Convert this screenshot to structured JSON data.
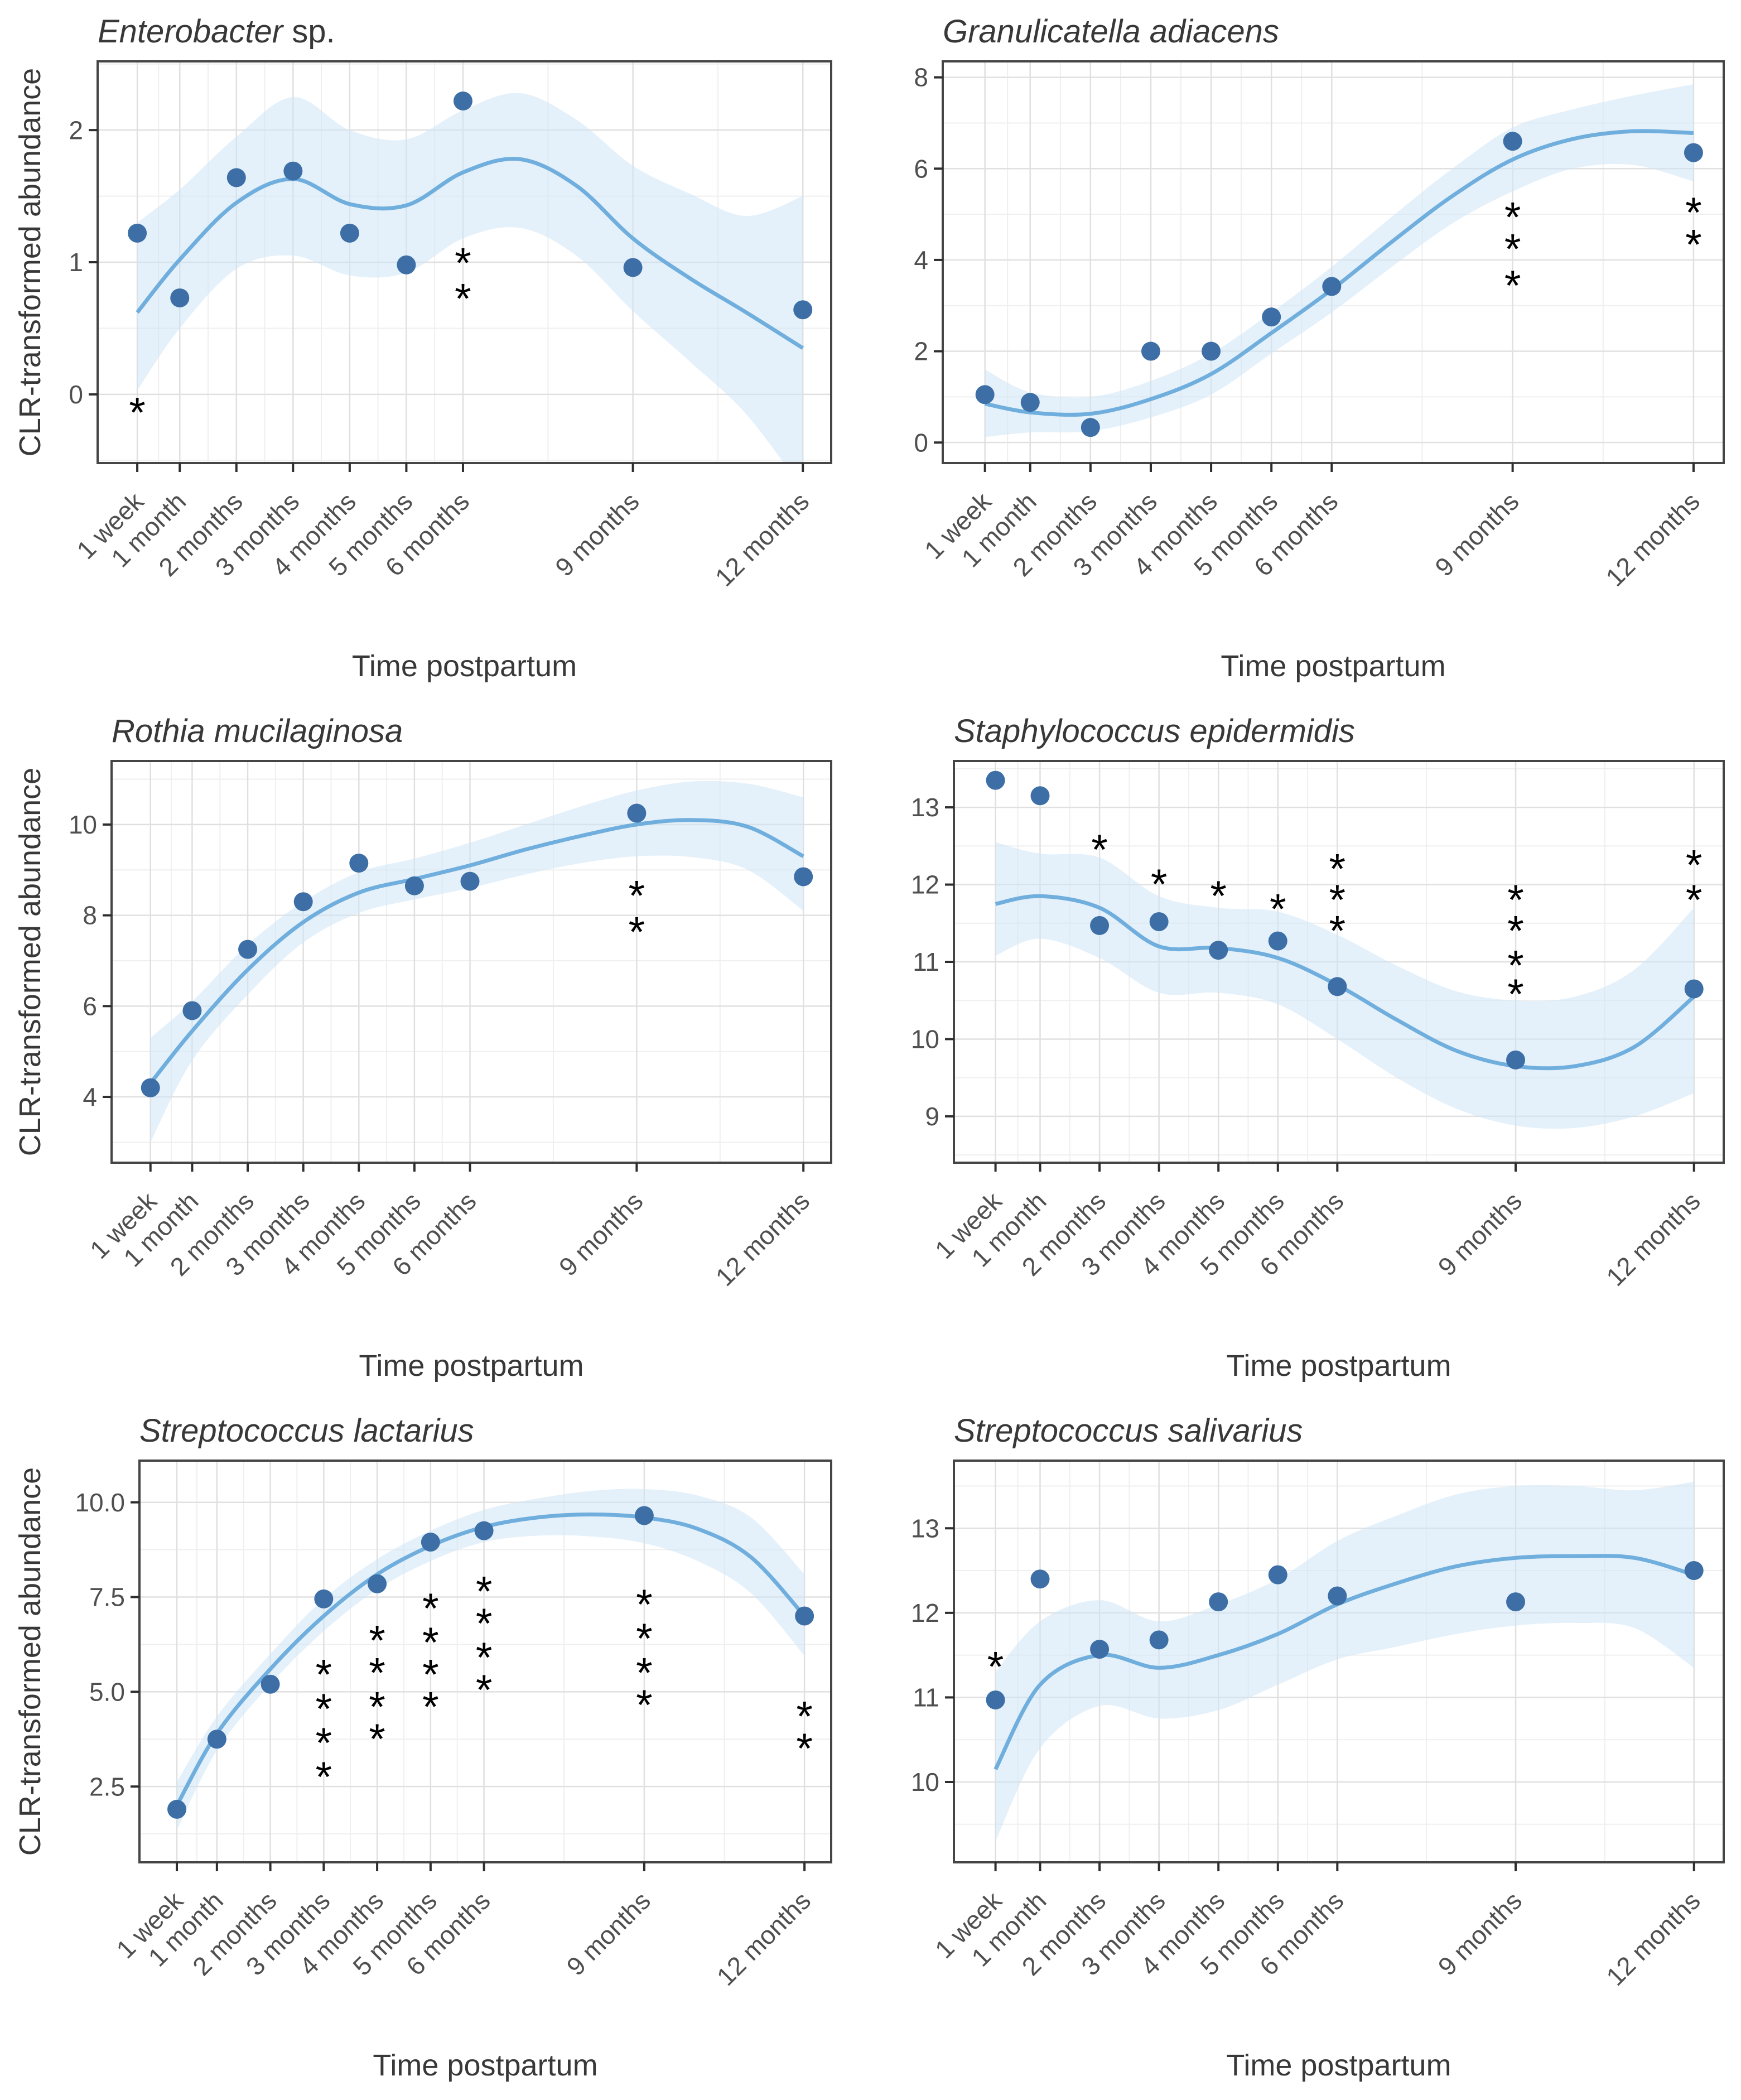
{
  "figure": {
    "ylabel": "CLR-transformed abundance",
    "xlabel": "Time postpartum",
    "colors": {
      "point": "#3d6fa6",
      "line": "#6faedd",
      "ribbon": "#cfe6f5",
      "grid_major": "#e0e0e0",
      "grid_minor": "#efefef",
      "border": "#454545",
      "tick": "#2e2e2e",
      "axis_text": "#4f4f4f",
      "title_text": "#383838",
      "asterisk": "#000000"
    }
  },
  "chart_data": [
    {
      "type": "scatter",
      "title_italic": "Enterobacter",
      "title_suffix": " sp.",
      "xlabel": "Time postpartum",
      "ylabel": "CLR-transformed abundance",
      "categories": [
        "1 week",
        "1 month",
        "2 months",
        "3 months",
        "4 months",
        "5 months",
        "6 months",
        "9 months",
        "12 months"
      ],
      "x_months": [
        0.25,
        1,
        2,
        3,
        4,
        5,
        6,
        9,
        12
      ],
      "values": [
        1.22,
        0.73,
        1.64,
        1.69,
        1.22,
        0.98,
        2.22,
        0.96,
        0.64
      ],
      "yticks": [
        0,
        1,
        2
      ],
      "ytick_labels": [
        "0",
        "1",
        "2"
      ],
      "ylim": [
        -0.52,
        2.52
      ],
      "xlim": [
        -0.45,
        12.5
      ],
      "smooth_x": [
        0.25,
        1,
        2,
        3,
        4,
        5,
        6,
        7,
        8,
        9,
        10,
        11,
        12
      ],
      "smooth_y": [
        0.62,
        1.02,
        1.45,
        1.63,
        1.44,
        1.43,
        1.68,
        1.78,
        1.58,
        1.18,
        0.88,
        0.62,
        0.35
      ],
      "ribbon_upper": [
        1.3,
        1.55,
        1.95,
        2.25,
        2.0,
        1.93,
        2.15,
        2.28,
        2.08,
        1.73,
        1.52,
        1.35,
        1.5
      ],
      "ribbon_lower": [
        0.03,
        0.5,
        0.95,
        1.05,
        0.9,
        0.92,
        1.18,
        1.26,
        1.05,
        0.63,
        0.25,
        -0.15,
        -0.72
      ],
      "marker": "*",
      "significance": [
        {
          "category": "1 week",
          "x_month": 0.25,
          "stars_y": [
            -0.08
          ]
        },
        {
          "category": "6 months",
          "x_month": 6,
          "stars_y": [
            1.05,
            0.78
          ]
        }
      ]
    },
    {
      "type": "scatter",
      "title_italic": "Granulicatella adiacens",
      "title_suffix": "",
      "xlabel": "Time postpartum",
      "ylabel": "",
      "categories": [
        "1 week",
        "1 month",
        "2 months",
        "3 months",
        "4 months",
        "5 months",
        "6 months",
        "9 months",
        "12 months"
      ],
      "x_months": [
        0.25,
        1,
        2,
        3,
        4,
        5,
        6,
        9,
        12
      ],
      "values": [
        1.05,
        0.88,
        0.33,
        2.0,
        2.0,
        2.75,
        3.42,
        6.6,
        6.35
      ],
      "yticks": [
        0,
        2,
        4,
        6,
        8
      ],
      "ytick_labels": [
        "0",
        "2",
        "4",
        "6",
        "8"
      ],
      "ylim": [
        -0.45,
        8.35
      ],
      "xlim": [
        -0.45,
        12.5
      ],
      "smooth_x": [
        0.25,
        1,
        2,
        3,
        4,
        5,
        6,
        7,
        8,
        9,
        10,
        11,
        12
      ],
      "smooth_y": [
        0.85,
        0.66,
        0.63,
        0.95,
        1.5,
        2.4,
        3.35,
        4.4,
        5.4,
        6.2,
        6.65,
        6.82,
        6.78
      ],
      "ribbon_upper": [
        1.6,
        1.1,
        1.0,
        1.35,
        1.95,
        2.85,
        3.85,
        4.95,
        6.0,
        6.9,
        7.3,
        7.6,
        7.85
      ],
      "ribbon_lower": [
        0.12,
        0.22,
        0.25,
        0.55,
        1.05,
        1.95,
        2.85,
        3.85,
        4.8,
        5.5,
        6.0,
        6.08,
        5.72
      ],
      "marker": "*",
      "significance": [
        {
          "category": "9 months",
          "x_month": 9,
          "stars_y": [
            5.1,
            4.4,
            3.6
          ]
        },
        {
          "category": "12 months",
          "x_month": 12,
          "stars_y": [
            5.2,
            4.5
          ]
        }
      ]
    },
    {
      "type": "scatter",
      "title_italic": "Rothia mucilaginosa",
      "title_suffix": "",
      "xlabel": "Time postpartum",
      "ylabel": "CLR-transformed abundance",
      "categories": [
        "1 week",
        "1 month",
        "2 months",
        "3 months",
        "4 months",
        "5 months",
        "6 months",
        "9 months",
        "12 months"
      ],
      "x_months": [
        0.25,
        1,
        2,
        3,
        4,
        5,
        6,
        9,
        12
      ],
      "values": [
        4.2,
        5.9,
        7.25,
        8.3,
        9.15,
        8.65,
        8.75,
        10.25,
        8.85
      ],
      "yticks": [
        4,
        6,
        8,
        10
      ],
      "ytick_labels": [
        "4",
        "6",
        "8",
        "10"
      ],
      "ylim": [
        2.55,
        11.4
      ],
      "xlim": [
        -0.45,
        12.5
      ],
      "smooth_x": [
        0.25,
        1,
        2,
        3,
        4,
        5,
        6,
        7,
        8,
        9,
        10,
        11,
        12
      ],
      "smooth_y": [
        4.3,
        5.45,
        6.8,
        7.85,
        8.5,
        8.8,
        9.1,
        9.45,
        9.75,
        10.0,
        10.1,
        9.95,
        9.3
      ],
      "ribbon_upper": [
        5.3,
        6.1,
        7.35,
        8.3,
        8.95,
        9.25,
        9.6,
        10.0,
        10.4,
        10.75,
        10.95,
        10.9,
        10.6
      ],
      "ribbon_lower": [
        3.0,
        4.8,
        6.25,
        7.4,
        8.05,
        8.35,
        8.6,
        8.9,
        9.15,
        9.3,
        9.28,
        9.0,
        8.1
      ],
      "marker": "*",
      "significance": [
        {
          "category": "9 months",
          "x_month": 9,
          "stars_y": [
            8.6,
            7.8
          ]
        }
      ]
    },
    {
      "type": "scatter",
      "title_italic": "Staphylococcus epidermidis",
      "title_suffix": "",
      "xlabel": "Time postpartum",
      "ylabel": "",
      "categories": [
        "1 week",
        "1 month",
        "2 months",
        "3 months",
        "4 months",
        "5 months",
        "6 months",
        "9 months",
        "12 months"
      ],
      "x_months": [
        0.25,
        1,
        2,
        3,
        4,
        5,
        6,
        9,
        12
      ],
      "values": [
        13.35,
        13.15,
        11.47,
        11.52,
        11.15,
        11.27,
        10.68,
        9.73,
        10.65
      ],
      "yticks": [
        9,
        10,
        11,
        12,
        13
      ],
      "ytick_labels": [
        "9",
        "10",
        "11",
        "12",
        "13"
      ],
      "ylim": [
        8.4,
        13.6
      ],
      "xlim": [
        -0.45,
        12.5
      ],
      "smooth_x": [
        0.25,
        1,
        2,
        3,
        4,
        5,
        6,
        7,
        8,
        9,
        10,
        11,
        12
      ],
      "smooth_y": [
        11.75,
        11.85,
        11.7,
        11.2,
        11.18,
        11.05,
        10.7,
        10.25,
        9.85,
        9.65,
        9.65,
        9.9,
        10.55
      ],
      "ribbon_upper": [
        12.55,
        12.4,
        12.35,
        11.85,
        11.7,
        11.65,
        11.35,
        10.95,
        10.62,
        10.5,
        10.55,
        10.9,
        11.7
      ],
      "ribbon_lower": [
        11.08,
        11.3,
        11.05,
        10.6,
        10.6,
        10.45,
        10.0,
        9.5,
        9.1,
        8.88,
        8.85,
        9.0,
        9.3
      ],
      "marker": "*",
      "significance": [
        {
          "category": "2 months",
          "x_month": 2,
          "stars_y": [
            12.55
          ]
        },
        {
          "category": "3 months",
          "x_month": 3,
          "stars_y": [
            12.1
          ]
        },
        {
          "category": "4 months",
          "x_month": 4,
          "stars_y": [
            11.95
          ]
        },
        {
          "category": "5 months",
          "x_month": 5,
          "stars_y": [
            11.78
          ]
        },
        {
          "category": "6 months",
          "x_month": 6,
          "stars_y": [
            12.3,
            11.9,
            11.5
          ]
        },
        {
          "category": "9 months",
          "x_month": 9,
          "stars_y": [
            11.9,
            11.5,
            11.05,
            10.68
          ]
        },
        {
          "category": "12 months",
          "x_month": 12,
          "stars_y": [
            12.35,
            11.9
          ]
        }
      ]
    },
    {
      "type": "scatter",
      "title_italic": "Streptococcus lactarius",
      "title_suffix": "",
      "xlabel": "Time postpartum",
      "ylabel": "CLR-transformed abundance",
      "categories": [
        "1 week",
        "1 month",
        "2 months",
        "3 months",
        "4 months",
        "5 months",
        "6 months",
        "9 months",
        "12 months"
      ],
      "x_months": [
        0.25,
        1,
        2,
        3,
        4,
        5,
        6,
        9,
        12
      ],
      "values": [
        1.9,
        3.75,
        5.2,
        7.45,
        7.85,
        8.95,
        9.25,
        9.65,
        7.0
      ],
      "yticks": [
        2.5,
        5.0,
        7.5,
        10.0
      ],
      "ytick_labels": [
        "2.5",
        "5.0",
        "7.5",
        "10.0"
      ],
      "ylim": [
        0.5,
        11.1
      ],
      "xlim": [
        -0.45,
        12.5
      ],
      "smooth_x": [
        0.25,
        1,
        2,
        3,
        4,
        5,
        6,
        7,
        8,
        9,
        10,
        11,
        12
      ],
      "smooth_y": [
        2.0,
        3.9,
        5.6,
        7.0,
        8.1,
        8.85,
        9.35,
        9.6,
        9.68,
        9.6,
        9.3,
        8.55,
        7.0
      ],
      "ribbon_upper": [
        2.62,
        4.35,
        6.0,
        7.45,
        8.5,
        9.25,
        9.8,
        10.1,
        10.3,
        10.35,
        10.18,
        9.6,
        8.1
      ],
      "ribbon_lower": [
        1.35,
        3.45,
        5.2,
        6.6,
        7.7,
        8.45,
        8.95,
        9.12,
        9.1,
        8.92,
        8.45,
        7.6,
        5.95
      ],
      "marker": "*",
      "significance": [
        {
          "category": "3 months",
          "x_month": 3,
          "stars_y": [
            5.65,
            4.75,
            3.85,
            2.95
          ]
        },
        {
          "category": "4 months",
          "x_month": 4,
          "stars_y": [
            6.55,
            5.7,
            4.8,
            3.95
          ]
        },
        {
          "category": "5 months",
          "x_month": 5,
          "stars_y": [
            7.4,
            6.5,
            5.65,
            4.8
          ]
        },
        {
          "category": "6 months",
          "x_month": 6,
          "stars_y": [
            7.85,
            7.0,
            6.1,
            5.25
          ]
        },
        {
          "category": "9 months",
          "x_month": 9,
          "stars_y": [
            7.5,
            6.6,
            5.7,
            4.85
          ]
        },
        {
          "category": "12 months",
          "x_month": 12,
          "stars_y": [
            4.55,
            3.7
          ]
        }
      ]
    },
    {
      "type": "scatter",
      "title_italic": "Streptococcus salivarius",
      "title_suffix": "",
      "xlabel": "Time postpartum",
      "ylabel": "",
      "categories": [
        "1 week",
        "1 month",
        "2 months",
        "3 months",
        "4 months",
        "5 months",
        "6 months",
        "9 months",
        "12 months"
      ],
      "x_months": [
        0.25,
        1,
        2,
        3,
        4,
        5,
        6,
        9,
        12
      ],
      "values": [
        10.97,
        12.4,
        11.57,
        11.68,
        12.13,
        12.45,
        12.2,
        12.13,
        12.5
      ],
      "yticks": [
        10,
        11,
        12,
        13
      ],
      "ytick_labels": [
        "10",
        "11",
        "12",
        "13"
      ],
      "ylim": [
        9.05,
        13.8
      ],
      "xlim": [
        -0.45,
        12.5
      ],
      "smooth_x": [
        0.25,
        1,
        2,
        3,
        4,
        5,
        6,
        7,
        8,
        9,
        10,
        11,
        12
      ],
      "smooth_y": [
        10.15,
        11.15,
        11.5,
        11.35,
        11.5,
        11.75,
        12.1,
        12.35,
        12.55,
        12.65,
        12.67,
        12.65,
        12.45
      ],
      "ribbon_upper": [
        11.3,
        11.9,
        12.15,
        11.9,
        12.1,
        12.4,
        12.85,
        13.15,
        13.4,
        13.5,
        13.5,
        13.45,
        13.55
      ],
      "ribbon_lower": [
        9.3,
        10.4,
        10.9,
        10.75,
        10.85,
        11.15,
        11.45,
        11.6,
        11.75,
        11.85,
        11.88,
        11.82,
        11.35
      ],
      "marker": "*",
      "significance": [
        {
          "category": "1 week",
          "x_month": 0.25,
          "stars_y": [
            11.45
          ]
        }
      ]
    }
  ]
}
